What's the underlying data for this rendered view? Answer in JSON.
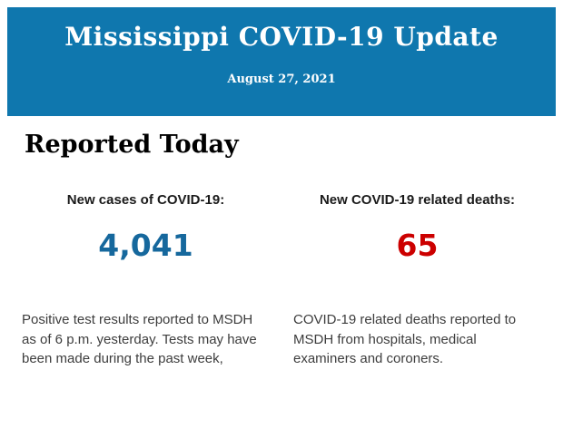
{
  "banner": {
    "title": "Mississippi COVID-19 Update",
    "date": "August 27, 2021",
    "background_color": "#0F77AE",
    "text_color": "#FFFFFF"
  },
  "section": {
    "heading": "Reported Today"
  },
  "stats": [
    {
      "label": "New cases of COVID-19:",
      "value": "4,041",
      "value_color": "#16689D",
      "description": "Positive test results reported to MSDH as of 6 p.m. yesterday. Tests may have been made during the past week,"
    },
    {
      "label": "New COVID-19 related deaths:",
      "value": "65",
      "value_color": "#CC0000",
      "description": "COVID-19 related deaths reported to MSDH from hospitals, medical examiners and coroners."
    }
  ]
}
